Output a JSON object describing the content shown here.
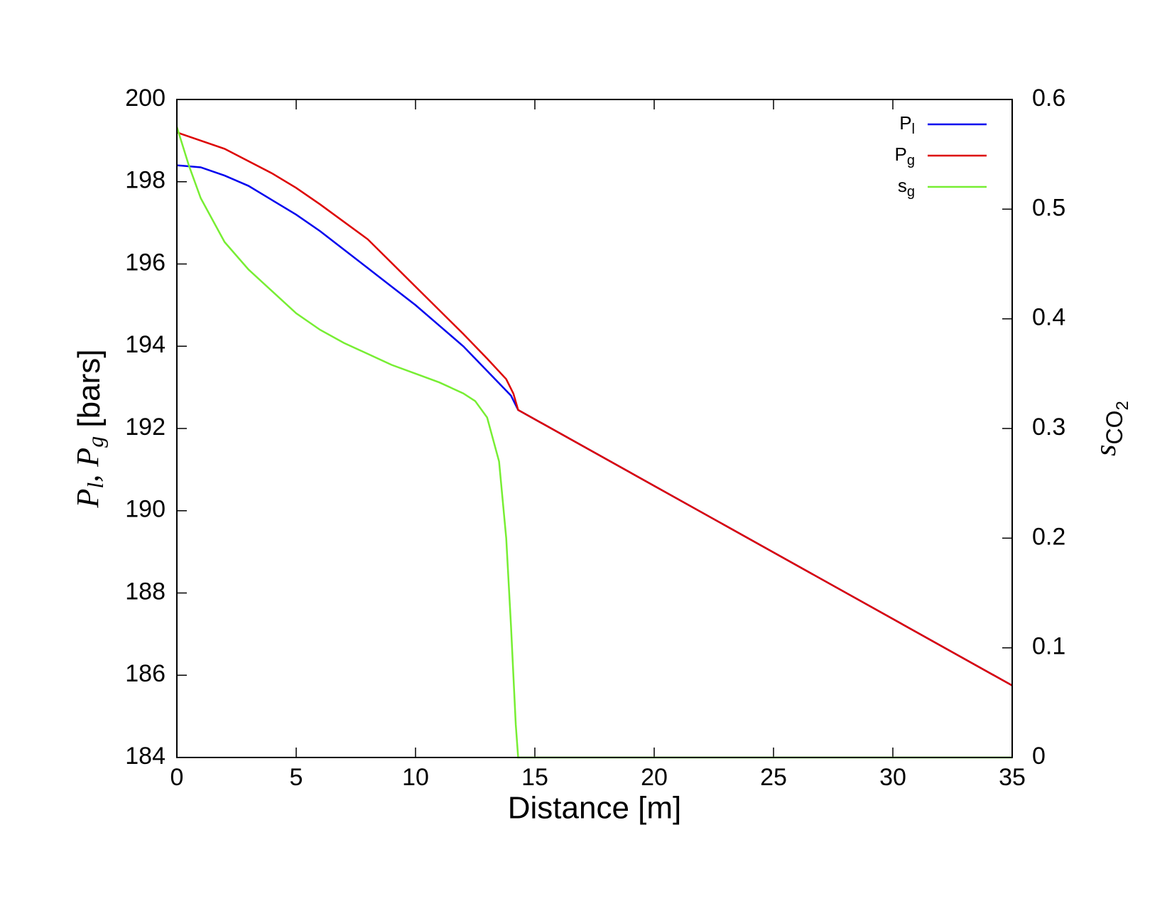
{
  "chart_data": {
    "type": "line",
    "xlabel": "Distance [m]",
    "ylabel": [
      "P",
      "l",
      ", P",
      "g",
      " [bars]"
    ],
    "y2label": [
      "s",
      "CO",
      "2"
    ],
    "xlim": [
      0,
      35
    ],
    "xticks": [
      0,
      5,
      10,
      15,
      20,
      25,
      30,
      35
    ],
    "ylim": [
      184,
      200
    ],
    "yticks": [
      184,
      186,
      188,
      190,
      192,
      194,
      196,
      198,
      200
    ],
    "y2lim": [
      0,
      0.6
    ],
    "y2ticks": [
      0,
      0.1,
      0.2,
      0.3,
      0.4,
      0.5,
      0.6
    ],
    "legend": "upper right",
    "series": [
      {
        "name": "Pl",
        "color": "#0000ee",
        "x": [
          0,
          1,
          2,
          3,
          4,
          5,
          6,
          7,
          8,
          9,
          10,
          11,
          12,
          13,
          14,
          14.3,
          35
        ],
        "values": [
          198.4,
          198.35,
          198.15,
          197.9,
          197.55,
          197.2,
          196.8,
          196.35,
          195.9,
          195.45,
          195.0,
          194.5,
          194.0,
          193.4,
          192.8,
          192.45,
          185.75
        ]
      },
      {
        "name": "Pg",
        "color": "#dd0000",
        "x": [
          0,
          2,
          4,
          5,
          6,
          8,
          10,
          12,
          13,
          13.8,
          14.1,
          14.3,
          35
        ],
        "values": [
          199.2,
          198.8,
          198.2,
          197.85,
          197.45,
          196.6,
          195.45,
          194.3,
          193.7,
          193.2,
          192.85,
          192.45,
          185.75
        ]
      },
      {
        "name": "sg",
        "color": "#77ee33",
        "axis": "y2",
        "x": [
          0,
          0.5,
          1,
          2,
          3,
          4,
          5,
          6,
          7,
          8,
          9,
          10,
          11,
          12,
          12.5,
          13,
          13.5,
          13.8,
          14,
          14.2,
          14.3,
          35
        ],
        "values": [
          0.575,
          0.54,
          0.51,
          0.47,
          0.445,
          0.425,
          0.405,
          0.39,
          0.378,
          0.368,
          0.358,
          0.35,
          0.342,
          0.332,
          0.325,
          0.31,
          0.27,
          0.2,
          0.12,
          0.03,
          0,
          0
        ]
      }
    ]
  }
}
